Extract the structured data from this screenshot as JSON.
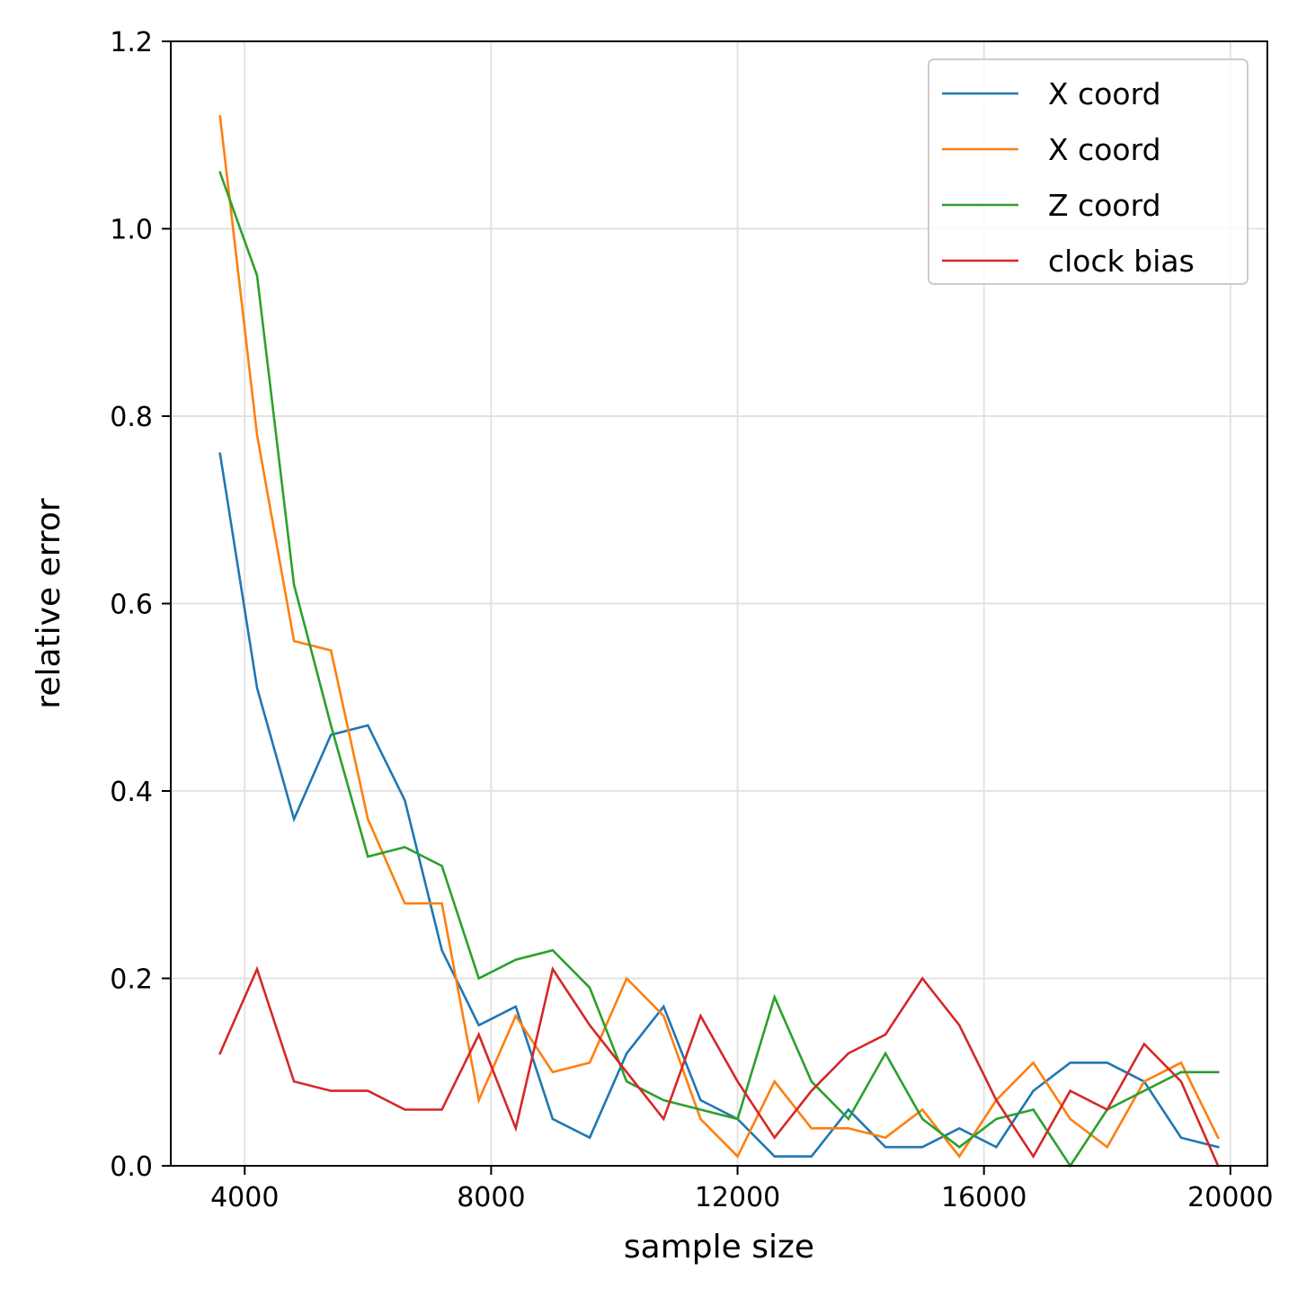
{
  "chart_data": {
    "type": "line",
    "title": "",
    "xlabel": "sample size",
    "ylabel": "relative error",
    "xlim": [
      2800,
      20600
    ],
    "ylim": [
      0.0,
      1.2
    ],
    "xticks": [
      4000,
      8000,
      12000,
      16000,
      20000
    ],
    "xtick_labels": [
      "4000",
      "8000",
      "12000",
      "16000",
      "20000"
    ],
    "yticks": [
      0.0,
      0.2,
      0.4,
      0.6,
      0.8,
      1.0,
      1.2
    ],
    "ytick_labels": [
      "0.0",
      "0.2",
      "0.4",
      "0.6",
      "0.8",
      "1.0",
      "1.2"
    ],
    "grid": true,
    "legend_position": "top-right",
    "x": [
      3600,
      4200,
      4800,
      5400,
      6000,
      6600,
      7200,
      7800,
      8400,
      9000,
      9600,
      10200,
      10800,
      11400,
      12000,
      12600,
      13200,
      13800,
      14400,
      15000,
      15600,
      16200,
      16800,
      17400,
      18000,
      18600,
      19200,
      19800
    ],
    "series": [
      {
        "name": "X coord",
        "color": "#1f77b4",
        "values": [
          0.76,
          0.51,
          0.37,
          0.46,
          0.47,
          0.39,
          0.23,
          0.15,
          0.17,
          0.05,
          0.03,
          0.12,
          0.17,
          0.07,
          0.05,
          0.01,
          0.01,
          0.06,
          0.02,
          0.02,
          0.04,
          0.02,
          0.08,
          0.11,
          0.11,
          0.09,
          0.03,
          0.02
        ]
      },
      {
        "name": "X coord",
        "color": "#ff7f0e",
        "values": [
          1.12,
          0.78,
          0.56,
          0.55,
          0.37,
          0.28,
          0.28,
          0.07,
          0.16,
          0.1,
          0.11,
          0.2,
          0.16,
          0.05,
          0.01,
          0.09,
          0.04,
          0.04,
          0.03,
          0.06,
          0.01,
          0.07,
          0.11,
          0.05,
          0.02,
          0.09,
          0.11,
          0.03
        ]
      },
      {
        "name": "Z coord",
        "color": "#2ca02c",
        "values": [
          1.06,
          0.95,
          0.62,
          0.47,
          0.33,
          0.34,
          0.32,
          0.2,
          0.22,
          0.23,
          0.19,
          0.09,
          0.07,
          0.06,
          0.05,
          0.18,
          0.09,
          0.05,
          0.12,
          0.05,
          0.02,
          0.05,
          0.06,
          0.0,
          0.06,
          0.08,
          0.1,
          0.1
        ]
      },
      {
        "name": "clock bias",
        "color": "#d62728",
        "values": [
          0.12,
          0.21,
          0.09,
          0.08,
          0.08,
          0.06,
          0.06,
          0.14,
          0.04,
          0.21,
          0.15,
          0.1,
          0.05,
          0.16,
          0.09,
          0.03,
          0.08,
          0.12,
          0.14,
          0.2,
          0.15,
          0.07,
          0.01,
          0.08,
          0.06,
          0.13,
          0.09,
          0.0
        ]
      }
    ]
  }
}
